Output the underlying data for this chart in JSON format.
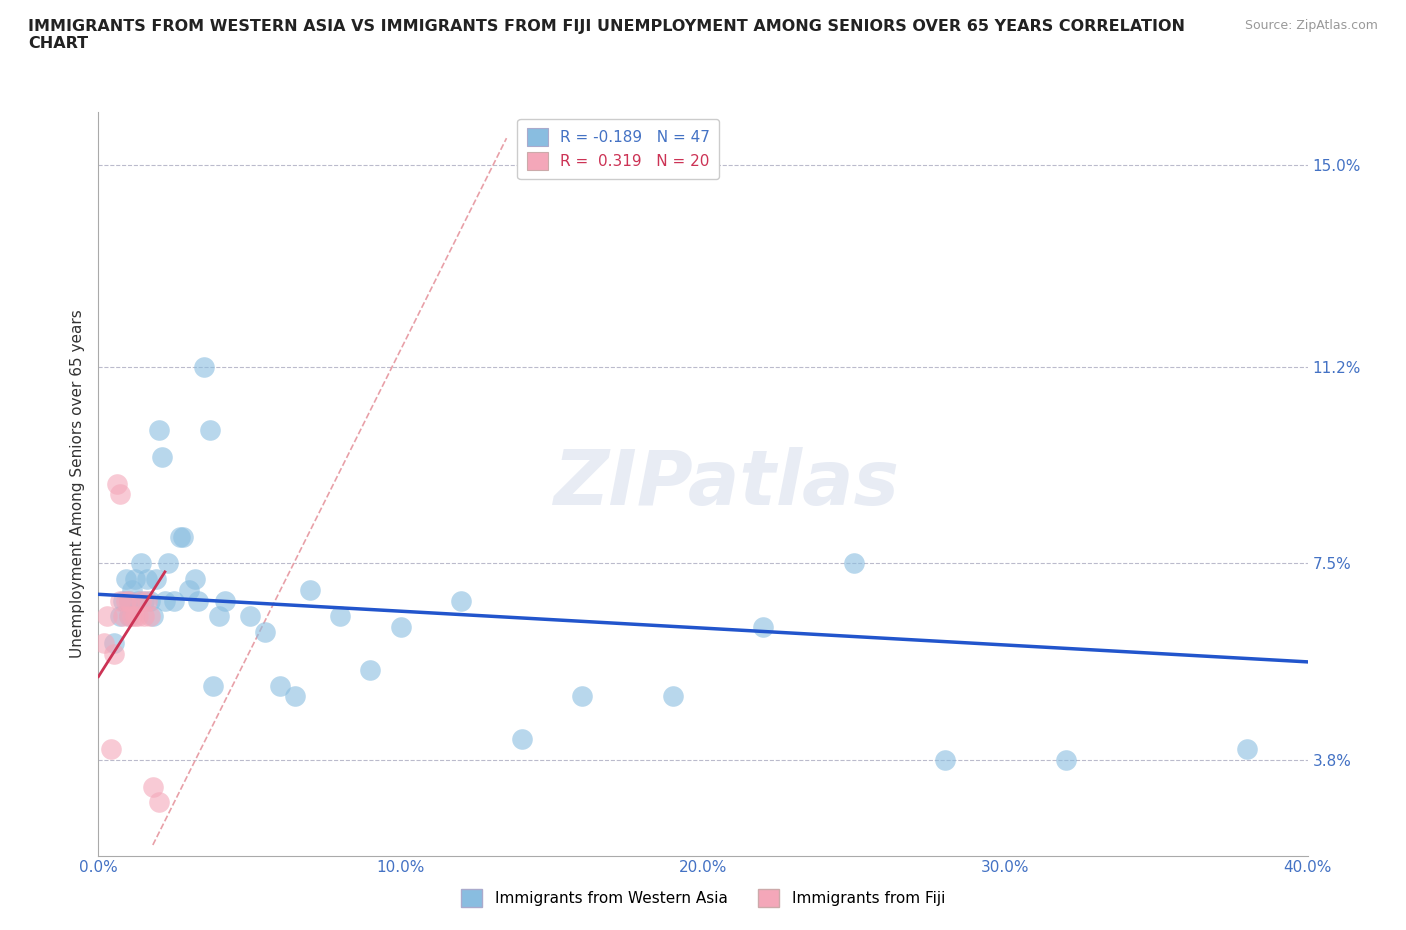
{
  "title": "IMMIGRANTS FROM WESTERN ASIA VS IMMIGRANTS FROM FIJI UNEMPLOYMENT AMONG SENIORS OVER 65 YEARS CORRELATION\nCHART",
  "source": "Source: ZipAtlas.com",
  "ylabel": "Unemployment Among Seniors over 65 years",
  "xlim": [
    0.0,
    0.4
  ],
  "ylim": [
    0.02,
    0.16
  ],
  "yticks": [
    0.038,
    0.075,
    0.112,
    0.15
  ],
  "ytick_labels": [
    "3.8%",
    "7.5%",
    "11.2%",
    "15.0%"
  ],
  "xticks": [
    0.0,
    0.1,
    0.2,
    0.3,
    0.4
  ],
  "xtick_labels": [
    "0.0%",
    "10.0%",
    "20.0%",
    "30.0%",
    "40.0%"
  ],
  "blue_color": "#89bde0",
  "pink_color": "#f4a7b9",
  "trend_blue_color": "#2255cc",
  "trend_pink_color": "#cc3355",
  "diag_color": "#e8a0a8",
  "blue_r": -0.189,
  "pink_r": 0.319,
  "blue_x": [
    0.005,
    0.007,
    0.008,
    0.009,
    0.01,
    0.01,
    0.011,
    0.012,
    0.013,
    0.014,
    0.015,
    0.016,
    0.017,
    0.018,
    0.019,
    0.02,
    0.021,
    0.022,
    0.023,
    0.025,
    0.027,
    0.028,
    0.03,
    0.032,
    0.033,
    0.035,
    0.037,
    0.038,
    0.04,
    0.042,
    0.05,
    0.055,
    0.06,
    0.065,
    0.07,
    0.08,
    0.09,
    0.1,
    0.12,
    0.14,
    0.16,
    0.19,
    0.22,
    0.25,
    0.28,
    0.32,
    0.38
  ],
  "blue_y": [
    0.06,
    0.065,
    0.068,
    0.072,
    0.065,
    0.068,
    0.07,
    0.072,
    0.068,
    0.075,
    0.068,
    0.072,
    0.068,
    0.065,
    0.072,
    0.1,
    0.095,
    0.068,
    0.075,
    0.068,
    0.08,
    0.08,
    0.07,
    0.072,
    0.068,
    0.112,
    0.1,
    0.052,
    0.065,
    0.068,
    0.065,
    0.062,
    0.052,
    0.05,
    0.07,
    0.065,
    0.055,
    0.063,
    0.068,
    0.042,
    0.05,
    0.05,
    0.063,
    0.075,
    0.038,
    0.038,
    0.04
  ],
  "pink_x": [
    0.002,
    0.003,
    0.004,
    0.005,
    0.006,
    0.007,
    0.007,
    0.008,
    0.009,
    0.01,
    0.01,
    0.011,
    0.012,
    0.013,
    0.014,
    0.015,
    0.016,
    0.017,
    0.018,
    0.02
  ],
  "pink_y": [
    0.06,
    0.065,
    0.04,
    0.058,
    0.09,
    0.088,
    0.068,
    0.065,
    0.068,
    0.065,
    0.068,
    0.065,
    0.065,
    0.065,
    0.068,
    0.065,
    0.068,
    0.065,
    0.033,
    0.03
  ],
  "watermark": "ZIPatlas",
  "bg_color": "#ffffff",
  "tick_color": "#4472c4",
  "legend_label_1": "R = -0.189   N = 47",
  "legend_label_2": "R =  0.319   N = 20",
  "legend_color_1": "#4472c4",
  "legend_color_2": "#cc3355",
  "bottom_legend_1": "Immigrants from Western Asia",
  "bottom_legend_2": "Immigrants from Fiji"
}
